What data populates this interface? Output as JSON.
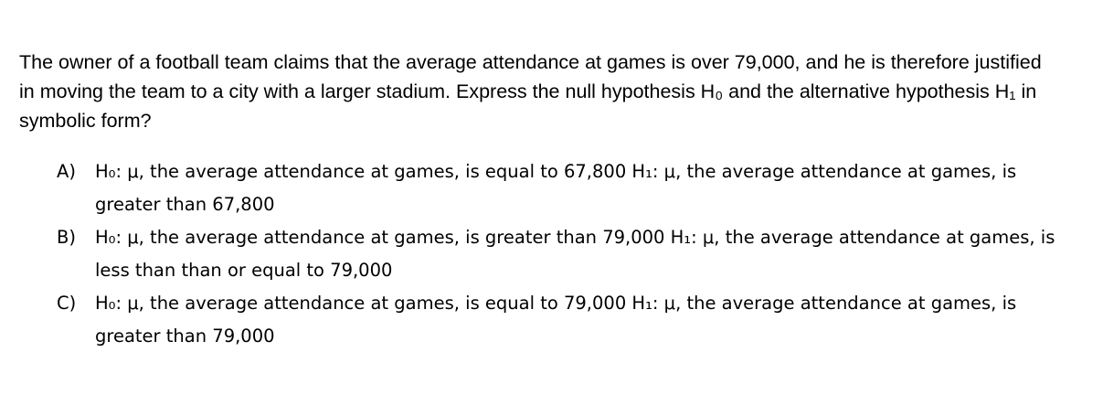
{
  "question": {
    "text": "The owner of a football team claims that the average attendance at games is over 79,000, and he is therefore justified in moving the team to a city with a larger stadium. Express the null hypothesis H₀ and the alternative hypothesis H₁ in symbolic form?"
  },
  "options": [
    {
      "letter": "A)",
      "text": "H₀: μ, the average attendance at games, is equal to 67,800 H₁: μ, the average attendance at games, is greater than 67,800"
    },
    {
      "letter": "B)",
      "text": "H₀: μ, the average attendance at games, is greater than 79,000 H₁: μ, the average attendance at games, is less than than or equal to 79,000"
    },
    {
      "letter": "C)",
      "text": "H₀: μ, the average attendance at games, is equal to 79,000 H₁: μ, the average attendance at games, is greater than 79,000"
    }
  ]
}
